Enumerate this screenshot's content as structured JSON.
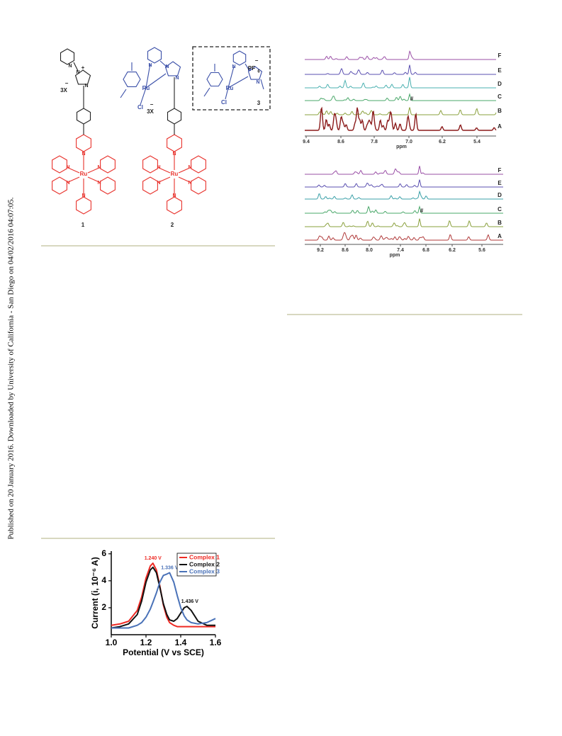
{
  "sidebar": {
    "text": "Published on 20 January 2016. Downloaded by University of California - San Diego on 04/02/2016 04:07:05."
  },
  "structures": {
    "atom_n": "N",
    "metal": "Ru",
    "chloride": "Cl",
    "counterion": "3X",
    "charge_minus": "−",
    "charge_plus": "+",
    "pf6": "PF",
    "pf6_sub": "6",
    "methyl": "N",
    "compound_labels": [
      "1",
      "2",
      "3"
    ]
  },
  "nmr_top": {
    "trace_labels": [
      "F",
      "E",
      "D",
      "C",
      "B",
      "A"
    ],
    "xticks": [
      "9.4",
      "8.6",
      "7.8",
      "7.0",
      "6.2",
      "5.4"
    ],
    "axis_label": "ppm",
    "marker": "#"
  },
  "nmr_bottom": {
    "trace_labels": [
      "F",
      "E",
      "D",
      "C",
      "B",
      "A"
    ],
    "xticks": [
      "9.2",
      "8.6",
      "8.0",
      "7.4",
      "6.8",
      "6.2",
      "5.6"
    ],
    "axis_label": "ppm",
    "marker": "#"
  },
  "chart_data": {
    "type": "line",
    "xlabel": "Potential (V vs SCE)",
    "ylabel": "Current (i, 10⁻⁶ A)",
    "x": [
      1.0,
      1.05,
      1.1,
      1.15,
      1.175,
      1.2,
      1.225,
      1.24,
      1.26,
      1.28,
      1.3,
      1.32,
      1.336,
      1.36,
      1.38,
      1.4,
      1.42,
      1.436,
      1.46,
      1.5,
      1.55,
      1.6
    ],
    "series": [
      {
        "name": "Complex 1",
        "color": "#ee2a24",
        "values": [
          0.7,
          0.8,
          1.0,
          1.8,
          2.8,
          4.2,
          5.1,
          5.3,
          4.8,
          3.6,
          2.2,
          1.3,
          0.9,
          0.7,
          0.6,
          0.6,
          0.6,
          0.6,
          0.6,
          0.6,
          0.6,
          0.6
        ]
      },
      {
        "name": "Complex 2",
        "color": "#111111",
        "values": [
          0.5,
          0.6,
          0.8,
          1.5,
          2.5,
          3.9,
          4.8,
          5.0,
          4.6,
          3.5,
          2.3,
          1.5,
          1.1,
          1.0,
          1.2,
          1.6,
          2.0,
          2.1,
          1.8,
          1.0,
          0.7,
          0.7
        ]
      },
      {
        "name": "Complex 3",
        "color": "#4a72b8",
        "values": [
          0.5,
          0.5,
          0.5,
          0.7,
          0.9,
          1.3,
          1.9,
          2.4,
          3.1,
          3.9,
          4.4,
          4.5,
          4.6,
          3.9,
          2.9,
          2.0,
          1.4,
          1.1,
          0.9,
          0.8,
          0.9,
          1.2
        ]
      }
    ],
    "annotations": [
      "1.240 V",
      "1.336 V",
      "1.436 V"
    ],
    "xlim": [
      1.0,
      1.6
    ],
    "ylim": [
      0.0,
      6.2
    ],
    "xticks": [
      {
        "value": 1.0,
        "label": "1.0"
      },
      1.2,
      1.4,
      1.6
    ],
    "yticks": [
      2,
      4,
      6
    ],
    "legend": "upper right"
  }
}
